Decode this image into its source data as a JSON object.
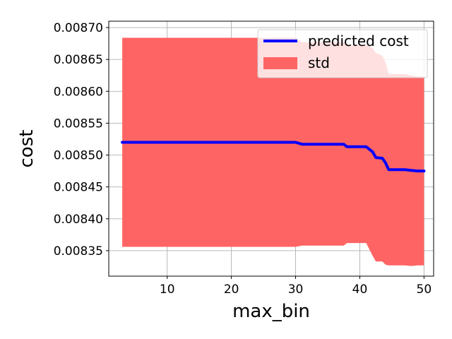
{
  "chart_data": {
    "type": "line",
    "xlabel": "max_bin",
    "ylabel": "cost",
    "xlim": [
      0.9,
      51.5
    ],
    "ylim": [
      0.00831,
      0.00871
    ],
    "x_ticks": [
      10,
      20,
      30,
      40,
      50
    ],
    "y_ticks": [
      0.00835,
      0.0084,
      0.00845,
      0.0085,
      0.00855,
      0.0086,
      0.00865,
      0.0087
    ],
    "x_tick_labels": [
      "10",
      "20",
      "30",
      "40",
      "50"
    ],
    "y_tick_labels": [
      "0.00835",
      "0.00840",
      "0.00845",
      "0.00850",
      "0.00855",
      "0.00860",
      "0.00865",
      "0.00870"
    ],
    "grid": true,
    "legend_position": "upper-right",
    "series": [
      {
        "name": "predicted cost",
        "kind": "line",
        "color": "#0000ff",
        "x": [
          3,
          30,
          31,
          37.5,
          38,
          41,
          42,
          42.5,
          43.5,
          44,
          44.5,
          46,
          47,
          48,
          49,
          50
        ],
        "y": [
          0.00852,
          0.00852,
          0.008517,
          0.008517,
          0.008513,
          0.008513,
          0.008505,
          0.008496,
          0.008495,
          0.008488,
          0.008477,
          0.008477,
          0.008477,
          0.008476,
          0.008475,
          0.008475
        ]
      },
      {
        "name": "std",
        "kind": "band",
        "color": "#ff6464",
        "x": [
          3,
          30,
          31,
          37.5,
          38,
          41,
          42,
          42.5,
          43.5,
          44,
          44.5,
          46,
          47,
          48,
          49,
          50
        ],
        "upper": [
          0.008684,
          0.008684,
          0.008677,
          0.008677,
          0.008673,
          0.008673,
          0.008668,
          0.00866,
          0.008656,
          0.008646,
          0.008627,
          0.008627,
          0.008627,
          0.008625,
          0.008623,
          0.008623
        ],
        "lower": [
          0.008356,
          0.008356,
          0.008358,
          0.008358,
          0.008362,
          0.008362,
          0.008342,
          0.008333,
          0.008333,
          0.008328,
          0.008327,
          0.008327,
          0.008327,
          0.008326,
          0.008327,
          0.008327
        ]
      }
    ]
  }
}
